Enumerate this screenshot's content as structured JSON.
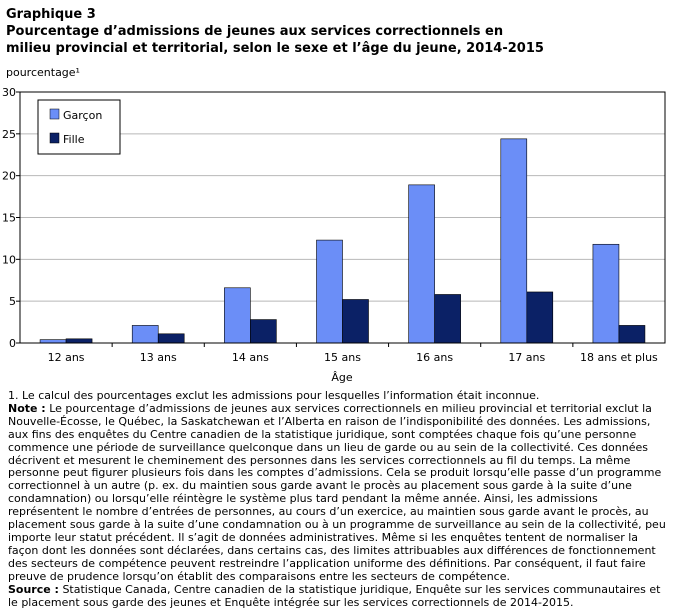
{
  "header": {
    "graphic_label": "Graphique  3",
    "title_line1": "Pourcentage d’admissions de jeunes aux services correctionnels en",
    "title_line2": "milieu provincial et territorial, selon le sexe et l’âge du jeune, 2014-2015"
  },
  "chart_data": {
    "type": "bar",
    "title": "",
    "ylabel": "pourcentage¹",
    "xlabel": "Âge",
    "ylim": [
      0,
      30
    ],
    "yticks": [
      0,
      5,
      10,
      15,
      20,
      25,
      30
    ],
    "grid": true,
    "legend_position": "top-left",
    "categories": [
      "12 ans",
      "13 ans",
      "14 ans",
      "15 ans",
      "16 ans",
      "17 ans",
      "18 ans et plus"
    ],
    "series": [
      {
        "name": "Garçon",
        "color": "#6b8ef7",
        "values": [
          0.4,
          2.1,
          6.6,
          12.3,
          18.9,
          24.4,
          11.8
        ]
      },
      {
        "name": "Fille",
        "color": "#0b2166",
        "values": [
          0.5,
          1.1,
          2.8,
          5.2,
          5.8,
          6.1,
          2.1
        ]
      }
    ]
  },
  "notes": {
    "footnote1": "1. Le calcul des pourcentages exclut les admissions pour lesquelles l’information était inconnue.",
    "note_label": "Note :",
    "note_lines": [
      "Le pourcentage d’admissions de jeunes aux services correctionnels en milieu provincial et territorial exclut la",
      "Nouvelle-Écosse, le Québec, la Saskatchewan et l’Alberta en raison de l’indisponibilité des données. Les admissions,",
      "aux fins des enquêtes du Centre canadien de la statistique juridique, sont comptées chaque fois qu’une personne",
      "commence une période de surveillance quelconque dans un lieu de garde ou au sein de la collectivité. Ces données",
      "décrivent et mesurent le cheminement des personnes dans les services correctionnels au fil du temps. La même",
      "personne peut figurer plusieurs fois dans les comptes d’admissions. Cela se produit lorsqu’elle passe d’un programme",
      "correctionnel à un autre (p. ex. du maintien sous garde avant le procès au placement sous garde à la suite d’une",
      "condamnation) ou lorsqu’elle réintègre le système plus tard pendant la même année. Ainsi, les admissions",
      "représentent le nombre d’entrées de personnes, au cours d’un exercice, au maintien sous garde avant le procès, au",
      "placement sous garde à la suite d’une condamnation ou à un programme de surveillance au sein de la collectivité, peu",
      "importe leur statut précédent. Il s’agit de données administratives. Même si les enquêtes tentent de normaliser la",
      "façon dont les données sont déclarées, dans certains cas, des limites attribuables aux différences de fonctionnement",
      "des secteurs de compétence peuvent restreindre l’application uniforme des définitions. Par conséquent, il faut faire",
      "preuve de prudence lorsqu’on établit des comparaisons entre les secteurs de compétence."
    ],
    "source_label": "Source :",
    "source_lines": [
      "Statistique Canada, Centre canadien de la statistique juridique, Enquête sur les services communautaires et",
      "le placement sous garde des jeunes et Enquête intégrée sur les services correctionnels de 2014-2015."
    ]
  }
}
